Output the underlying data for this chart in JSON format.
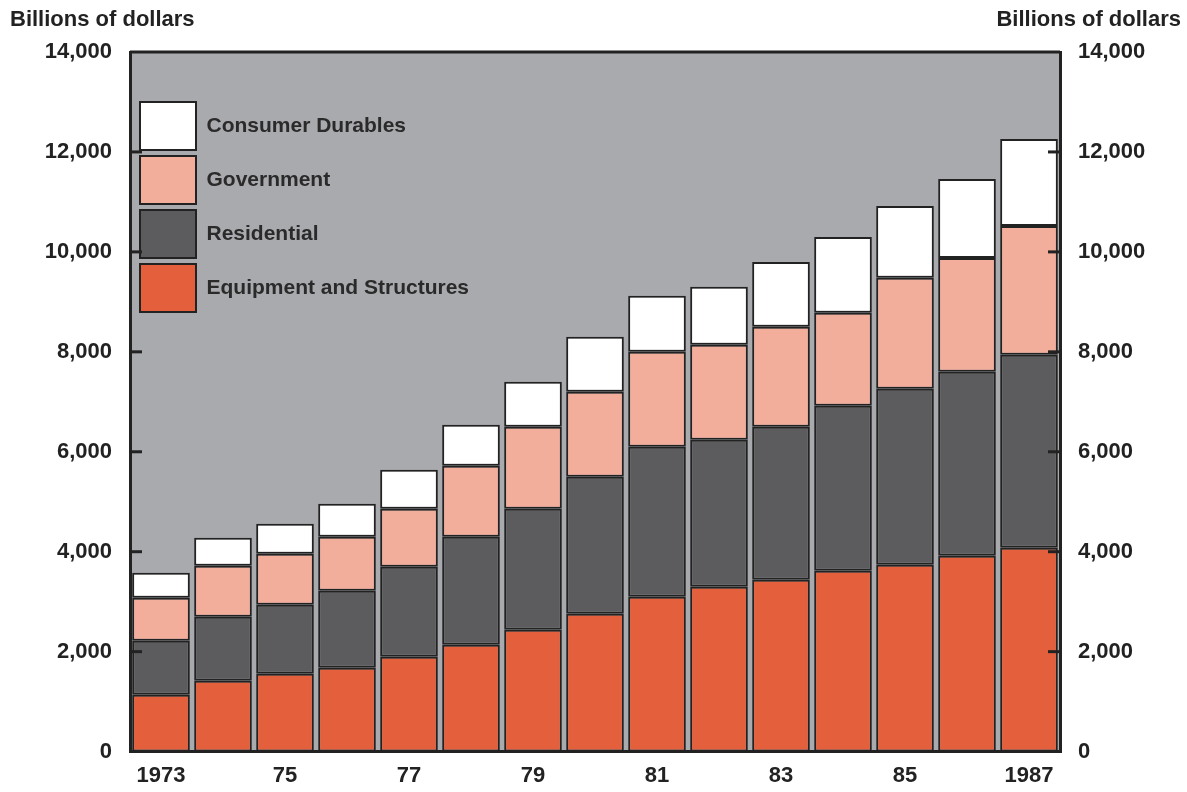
{
  "chart_data": {
    "type": "bar",
    "stacked": true,
    "ylabel": "Billions of dollars",
    "y2label": "Billions of dollars",
    "categories": [
      "1973",
      null,
      "75",
      null,
      "77",
      null,
      "79",
      null,
      "81",
      null,
      "83",
      null,
      "85",
      null,
      "1987"
    ],
    "series": [
      {
        "name": "Equipment and Structures",
        "color": "#e4603c",
        "values": [
          1140,
          1420,
          1560,
          1680,
          1900,
          2140,
          2440,
          2760,
          3100,
          3300,
          3440,
          3620,
          3740,
          3920,
          4080
        ]
      },
      {
        "name": "Residential",
        "color": "#5c5c5e",
        "values": [
          1080,
          1280,
          1380,
          1540,
          1800,
          2160,
          2420,
          2740,
          3000,
          2940,
          3060,
          3300,
          3520,
          3680,
          3860
        ]
      },
      {
        "name": "Government",
        "color": "#f2ad9b",
        "values": [
          860,
          1020,
          1020,
          1080,
          1160,
          1420,
          1640,
          1700,
          1900,
          1900,
          2000,
          1860,
          2220,
          2280,
          2580
        ]
      },
      {
        "name": "Consumer Durables",
        "color": "#ffffff",
        "values": [
          500,
          560,
          600,
          660,
          780,
          820,
          900,
          1100,
          1120,
          1160,
          1300,
          1520,
          1440,
          1580,
          1740
        ]
      }
    ],
    "ylim": [
      0,
      14000
    ],
    "yticks": [
      0,
      {
        "value": 2000,
        "label": "2,000"
      },
      {
        "value": 4000,
        "label": "4,000"
      },
      {
        "value": 6000,
        "label": "6,000"
      },
      {
        "value": 8000,
        "label": "8,000"
      },
      {
        "value": 10000,
        "label": "10,000"
      },
      {
        "value": 12000,
        "label": "12,000"
      },
      {
        "value": 14000,
        "label": "14,000"
      }
    ],
    "y2lim": [
      0,
      14000
    ],
    "y2ticks": [
      0,
      {
        "value": 2000,
        "label": "2,000"
      },
      {
        "value": 4000,
        "label": "4,000"
      },
      {
        "value": 6000,
        "label": "6,000"
      },
      {
        "value": 8000,
        "label": "8,000"
      },
      {
        "value": 10000,
        "label": "10,000"
      },
      {
        "value": 12000,
        "label": "12,000"
      },
      {
        "value": 14000,
        "label": "14,000"
      }
    ],
    "grid": false,
    "legend": "top left"
  }
}
